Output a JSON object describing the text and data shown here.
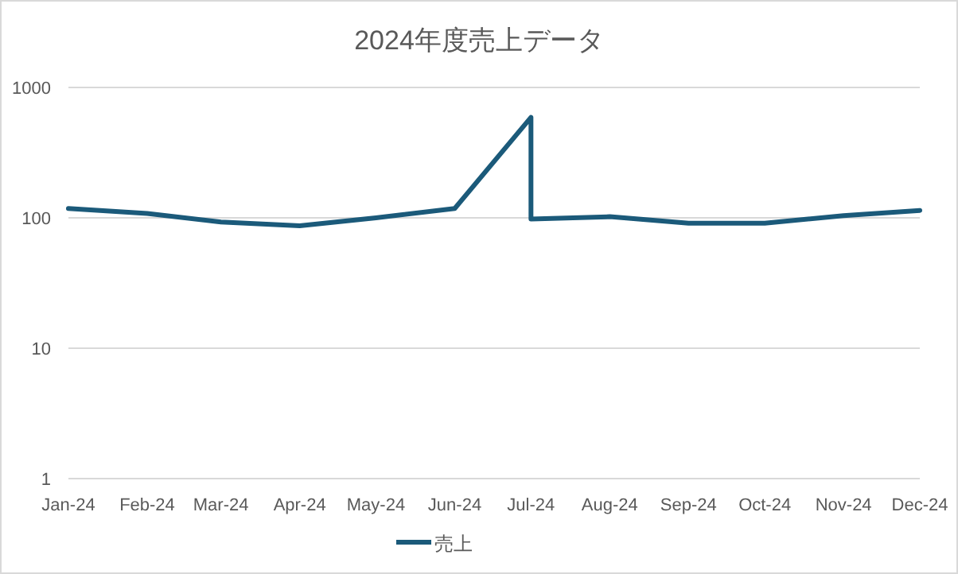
{
  "chart_data": {
    "type": "line",
    "title": "2024年度売上データ",
    "x": [
      "2024-01-01",
      "2024-02-01",
      "2024-03-01",
      "2024-04-01",
      "2024-05-01",
      "2024-06-01",
      "2024-07-01",
      "2024-07-01",
      "2024-08-01",
      "2024-09-01",
      "2024-10-01",
      "2024-11-01",
      "2024-12-01"
    ],
    "series": [
      {
        "name": "売上",
        "color": "#1b5a7a",
        "values": [
          118,
          108,
          93,
          87,
          100,
          118,
          590,
          98,
          102,
          91,
          91,
          104,
          114
        ]
      }
    ],
    "log": "y",
    "ylim": [
      1,
      1000
    ],
    "yticks": [
      1,
      10,
      100,
      1000
    ],
    "xlim": [
      "2024-01-01",
      "2024-12-01"
    ],
    "xticks": [
      {
        "value": "2024-01-01",
        "label": "Jan-24"
      },
      {
        "value": "2024-02-01",
        "label": "Feb-24"
      },
      {
        "value": "2024-03-01",
        "label": "Mar-24"
      },
      {
        "value": "2024-04-01",
        "label": "Apr-24"
      },
      {
        "value": "2024-05-01",
        "label": "May-24"
      },
      {
        "value": "2024-06-01",
        "label": "Jun-24"
      },
      {
        "value": "2024-07-01",
        "label": "Jul-24"
      },
      {
        "value": "2024-08-01",
        "label": "Aug-24"
      },
      {
        "value": "2024-09-01",
        "label": "Sep-24"
      },
      {
        "value": "2024-10-01",
        "label": "Oct-24"
      },
      {
        "value": "2024-11-01",
        "label": "Nov-24"
      },
      {
        "value": "2024-12-01",
        "label": "Dec-24"
      }
    ],
    "grid": "y",
    "legend": "bottom",
    "line_style": "solid"
  }
}
